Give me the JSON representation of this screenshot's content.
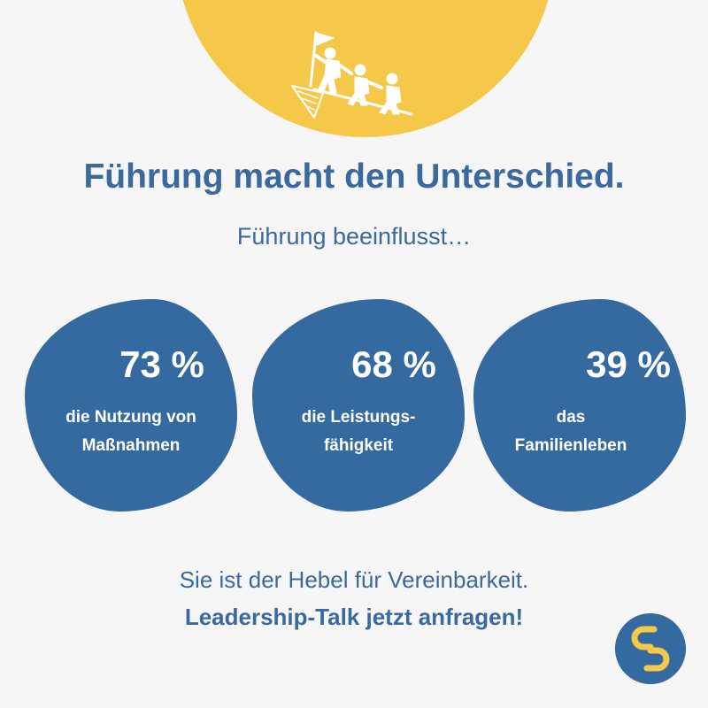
{
  "header": {
    "title": "Führung macht den Unterschied.",
    "subtitle": "Führung beeinflusst…"
  },
  "stats": [
    {
      "value": "73 %",
      "label_line1": "die Nutzung von",
      "label_line2": "Maßnahmen"
    },
    {
      "value": "68 %",
      "label_line1": "die Leistungs-",
      "label_line2": "fähigkeit"
    },
    {
      "value": "39 %",
      "label_line1": "das",
      "label_line2": "Familienleben"
    }
  ],
  "footer": {
    "statement": "Sie ist der Hebel für Vereinbarkeit.",
    "cta": "Leadership-Talk jetzt anfragen!"
  },
  "colors": {
    "background": "#f6f6f6",
    "accent_yellow": "#f5c84a",
    "primary_blue": "#356aa0",
    "text_blue": "#3a69a0"
  }
}
